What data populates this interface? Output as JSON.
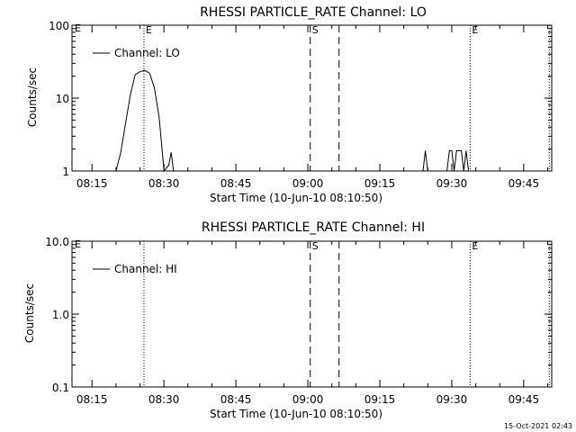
{
  "colors": {
    "background": "#ffffff",
    "foreground": "#000000"
  },
  "footer": {
    "timestamp": "15-Oct-2021 02:43"
  },
  "chart_data": [
    {
      "type": "line",
      "title": "RHESSI PARTICLE_RATE Channel: LO",
      "xlabel": "Start Time (10-Jun-10 08:10:50)",
      "ylabel": "Counts/sec",
      "y_scale": "log",
      "ylim": [
        1,
        100
      ],
      "y_ticks": [
        1,
        10,
        100
      ],
      "y_tick_labels": [
        "1",
        "10",
        "100"
      ],
      "xlim": [
        "08:10:50",
        "09:50:50"
      ],
      "x_ticks": [
        "08:15",
        "08:30",
        "08:45",
        "09:00",
        "09:15",
        "09:30",
        "09:45"
      ],
      "legend_position": "top-left",
      "series": [
        {
          "name": "Channel: LO",
          "x": [
            "08:20:00",
            "08:21:00",
            "08:22:00",
            "08:23:00",
            "08:24:00",
            "08:25:00",
            "08:26:00",
            "08:27:00",
            "08:28:00",
            "08:29:00",
            "08:30:00",
            "08:31:00",
            "08:31:30",
            "08:32:00",
            "08:32:30",
            "08:33:00",
            "09:24:00",
            "09:24:30",
            "09:25:00",
            "09:29:00",
            "09:29:30",
            "09:30:00",
            "09:30:30",
            "09:31:00",
            "09:31:30",
            "09:32:00",
            "09:32:30",
            "09:33:00",
            "09:33:30"
          ],
          "y": [
            1.0,
            1.8,
            4.5,
            11,
            21,
            23,
            24,
            22,
            14,
            5.5,
            1.0,
            1.2,
            1.8,
            1.0,
            null,
            null,
            1.0,
            1.9,
            1.0,
            1.0,
            1.9,
            1.9,
            1.0,
            1.9,
            1.9,
            1.9,
            1.0,
            1.9,
            1.0
          ]
        }
      ],
      "markers": [
        {
          "time": "08:25:50",
          "label": "E",
          "style": "dotted"
        },
        {
          "time": "09:00:30",
          "label": "S",
          "style": "dashed"
        },
        {
          "time": "09:06:30",
          "label": "",
          "style": "dashed"
        },
        {
          "time": "09:33:50",
          "label": "E",
          "style": "dotted"
        },
        {
          "time": "09:50:20",
          "label": "",
          "style": "dotted"
        }
      ],
      "edge_label": "E"
    },
    {
      "type": "line",
      "title": "RHESSI PARTICLE_RATE Channel: HI",
      "xlabel": "Start Time (10-Jun-10 08:10:50)",
      "ylabel": "Counts/sec",
      "y_scale": "log",
      "ylim": [
        0.1,
        10
      ],
      "y_ticks": [
        0.1,
        1,
        10
      ],
      "y_tick_labels": [
        "0.1",
        "1.0",
        "10.0"
      ],
      "xlim": [
        "08:10:50",
        "09:50:50"
      ],
      "x_ticks": [
        "08:15",
        "08:30",
        "08:45",
        "09:00",
        "09:15",
        "09:30",
        "09:45"
      ],
      "legend_position": "top-left",
      "series": [
        {
          "name": "Channel: HI",
          "x": [],
          "y": []
        }
      ],
      "markers": [
        {
          "time": "08:25:50",
          "label": "",
          "style": "dotted"
        },
        {
          "time": "09:00:30",
          "label": "S",
          "style": "dashed"
        },
        {
          "time": "09:06:30",
          "label": "",
          "style": "dashed"
        },
        {
          "time": "09:33:50",
          "label": "E",
          "style": "dotted"
        },
        {
          "time": "09:50:20",
          "label": "",
          "style": "dotted"
        }
      ],
      "edge_label": "E"
    }
  ]
}
